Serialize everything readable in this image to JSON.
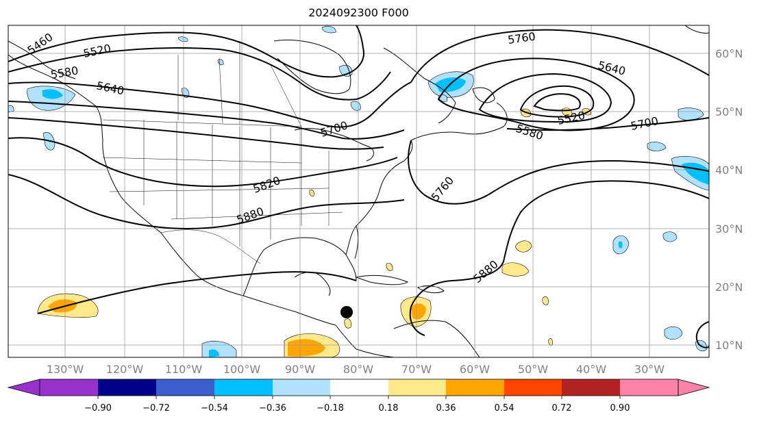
{
  "title": "2024092300 F000",
  "lon_labels": [
    "130°W",
    "120°W",
    "110°W",
    "100°W",
    "90°W",
    "80°W",
    "70°W",
    "60°W",
    "50°W",
    "40°W",
    "30°W"
  ],
  "lat_labels": [
    "60°N",
    "50°N",
    "40°N",
    "30°N",
    "20°N",
    "10°N"
  ],
  "contour_labels": [
    "5460",
    "5520",
    "5580",
    "5640",
    "5700",
    "5760",
    "5820",
    "5880"
  ],
  "colorbar": {
    "tick_labels": [
      "−0.90",
      "−0.72",
      "−0.54",
      "−0.36",
      "−0.18",
      "0.18",
      "0.36",
      "0.54",
      "0.72",
      "0.90"
    ],
    "colors": [
      "#9932cc",
      "#00008b",
      "#3a5fcd",
      "#00bfff",
      "#b0e2ff",
      "#ffffff",
      "#ffe98a",
      "#ffa500",
      "#ff4500",
      "#b22222",
      "#ff82ab"
    ]
  },
  "storm_marker": "storm-center-dot"
}
